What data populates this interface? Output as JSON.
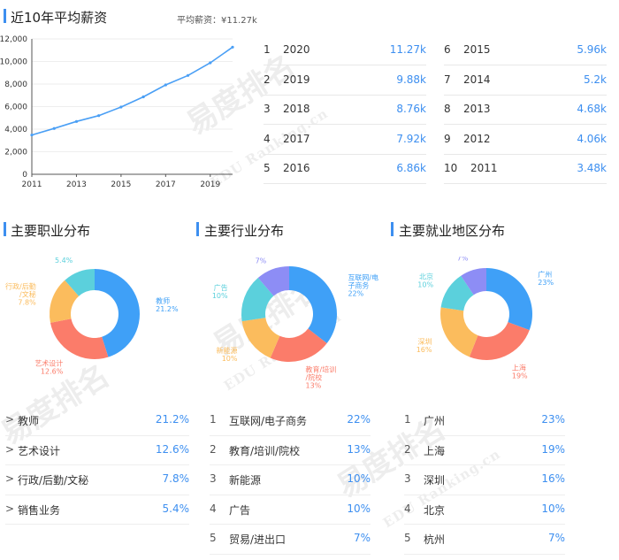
{
  "salary": {
    "title": "近10年平均薪资",
    "avg_label": "平均薪资：¥11.27k",
    "years": [
      {
        "rank": "1",
        "year": "2020",
        "value": "11.27k"
      },
      {
        "rank": "2",
        "year": "2019",
        "value": "9.88k"
      },
      {
        "rank": "3",
        "year": "2018",
        "value": "8.76k"
      },
      {
        "rank": "4",
        "year": "2017",
        "value": "7.92k"
      },
      {
        "rank": "5",
        "year": "2016",
        "value": "6.86k"
      },
      {
        "rank": "6",
        "year": "2015",
        "value": "5.96k"
      },
      {
        "rank": "7",
        "year": "2014",
        "value": "5.2k"
      },
      {
        "rank": "8",
        "year": "2013",
        "value": "4.68k"
      },
      {
        "rank": "9",
        "year": "2012",
        "value": "4.06k"
      },
      {
        "rank": "10",
        "year": "2011",
        "value": "3.48k"
      }
    ]
  },
  "occupation": {
    "title": "主要职业分布",
    "list": [
      {
        "lead": ">",
        "name": "教师",
        "pct": "21.2%"
      },
      {
        "lead": ">",
        "name": "艺术设计",
        "pct": "12.6%"
      },
      {
        "lead": ">",
        "name": "行政/后勤/文秘",
        "pct": "7.8%"
      },
      {
        "lead": ">",
        "name": "销售业务",
        "pct": "5.4%"
      }
    ]
  },
  "industry": {
    "title": "主要行业分布",
    "list": [
      {
        "lead": "1",
        "name": "互联网/电子商务",
        "pct": "22%"
      },
      {
        "lead": "2",
        "name": "教育/培训/院校",
        "pct": "13%"
      },
      {
        "lead": "3",
        "name": "新能源",
        "pct": "10%"
      },
      {
        "lead": "4",
        "name": "广告",
        "pct": "10%"
      },
      {
        "lead": "5",
        "name": "贸易/进出口",
        "pct": "7%"
      }
    ]
  },
  "region": {
    "title": "主要就业地区分布",
    "list": [
      {
        "lead": "1",
        "name": "广州",
        "pct": "23%"
      },
      {
        "lead": "2",
        "name": "上海",
        "pct": "19%"
      },
      {
        "lead": "3",
        "name": "深圳",
        "pct": "16%"
      },
      {
        "lead": "4",
        "name": "北京",
        "pct": "10%"
      },
      {
        "lead": "5",
        "name": "杭州",
        "pct": "7%"
      }
    ]
  },
  "watermark": {
    "brand": "易度排名",
    "sub": "EDU Ranking.cn"
  },
  "chart_data": [
    {
      "type": "line",
      "x": [
        2011,
        2012,
        2013,
        2014,
        2015,
        2016,
        2017,
        2018,
        2019,
        2020
      ],
      "series": [
        {
          "values": [
            3480,
            4060,
            4680,
            5200,
            5960,
            6860,
            7920,
            8760,
            9880,
            11270
          ]
        }
      ],
      "x_tick_labels": [
        "2011",
        "2013",
        "2015",
        "2017",
        "2019"
      ],
      "y_tick_labels": [
        "0",
        "2,000",
        "4,000",
        "6,000",
        "8,000",
        "10,000",
        "12,000"
      ],
      "ylim": [
        0,
        12000
      ],
      "color": "#4a9ff5"
    },
    {
      "type": "pie",
      "title": "主要职业分布",
      "labels": [
        "教师",
        "艺术设计",
        "行政/后勤/文秘",
        "销售业务"
      ],
      "label_lines": [
        [
          "教师",
          "21.2%"
        ],
        [
          "艺术设计",
          "12.6%"
        ],
        [
          "行政/后勤",
          "/文秘",
          "7.8%"
        ],
        [
          "销售业务",
          "5.4%"
        ]
      ],
      "values": [
        21.2,
        12.6,
        7.8,
        5.4
      ],
      "colors": [
        "#3fa0f7",
        "#fb7c6a",
        "#fbbc5d",
        "#5bd0dc"
      ]
    },
    {
      "type": "pie",
      "title": "主要行业分布",
      "labels": [
        "互联网/电子商务",
        "教育/培训/院校",
        "新能源",
        "广告",
        "贸易/进出口"
      ],
      "label_lines": [
        [
          "互联网/电",
          "子商务",
          "22%"
        ],
        [
          "教育/培训",
          "/院校",
          "13%"
        ],
        [
          "新能源",
          "10%"
        ],
        [
          "广告",
          "10%"
        ],
        [
          "贸易/进出",
          "口",
          "7%"
        ]
      ],
      "values": [
        22,
        13,
        10,
        10,
        7
      ],
      "colors": [
        "#3fa0f7",
        "#fb7c6a",
        "#fbbc5d",
        "#5bd0dc",
        "#8d8df5"
      ]
    },
    {
      "type": "pie",
      "title": "主要就业地区分布",
      "labels": [
        "广州",
        "上海",
        "深圳",
        "北京",
        "杭州"
      ],
      "label_lines": [
        [
          "广州",
          "23%"
        ],
        [
          "上海",
          "19%"
        ],
        [
          "深圳",
          "16%"
        ],
        [
          "北京",
          "10%"
        ],
        [
          "杭州",
          "7%"
        ]
      ],
      "values": [
        23,
        19,
        16,
        10,
        7
      ],
      "colors": [
        "#3fa0f7",
        "#fb7c6a",
        "#fbbc5d",
        "#5bd0dc",
        "#8d8df5"
      ]
    }
  ]
}
